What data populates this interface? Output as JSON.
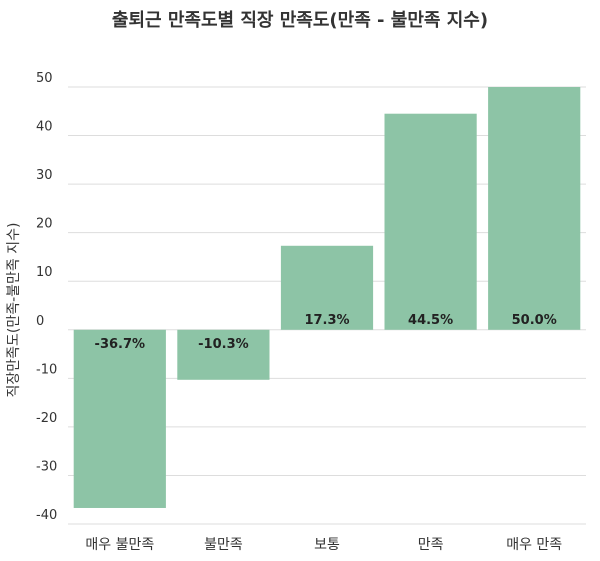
{
  "chart_data": {
    "type": "bar",
    "title": "출퇴근 만족도별 직장 만족도(만족 - 불만족 지수)",
    "xlabel": "",
    "ylabel": "직장만족도(만족-불만족 지수)",
    "categories": [
      "매우 불만족",
      "불만족",
      "보통",
      "만족",
      "매우 만족"
    ],
    "values": [
      -36.7,
      -10.3,
      17.3,
      44.5,
      50.0
    ],
    "data_labels": [
      "-36.7%",
      "-10.3%",
      "17.3%",
      "44.5%",
      "50.0%"
    ],
    "yticks": [
      50,
      40,
      30,
      20,
      10,
      0,
      -10,
      -20,
      -30,
      -40
    ],
    "ylim": [
      -40,
      50
    ],
    "grid": true,
    "legend": "none",
    "bar_color": "#8dc4a6"
  }
}
